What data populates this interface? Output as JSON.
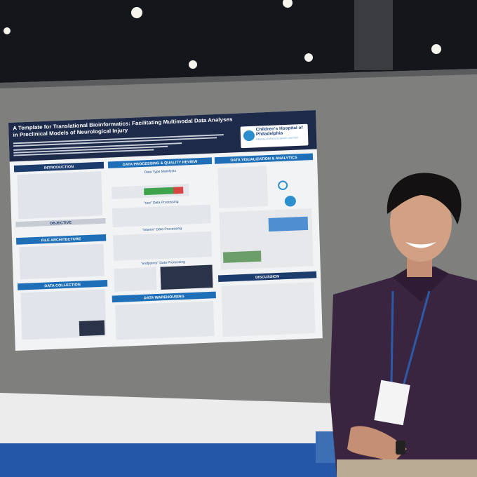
{
  "poster": {
    "title": "A Template for Translational Bioinformatics: Facilitating Multimodal Data Analyses in Preclinical Models of Neurological Injury",
    "institution": {
      "name": "Children's Hospital of Philadelphia",
      "division": "RESUSCITATION SCIENCE CENTER"
    },
    "sections": {
      "introduction": "INTRODUCTION",
      "objective": "OBJECTIVE",
      "file_architecture": "FILE ARCHITECTURE",
      "data_collection": "DATA COLLECTION",
      "data_processing": "DATA PROCESSING & QUALITY REVIEW",
      "data_warehousing": "DATA WAREHOUSING",
      "data_visualization": "DATA VISUALIZATION & ANALYTICS",
      "discussion": "DISCUSSION"
    },
    "subsections": [
      "Data Type Manifests",
      "\"raw\" Data Processing",
      "\"interim\" Data Processing",
      "\"endpoints\" Data Processing"
    ]
  }
}
